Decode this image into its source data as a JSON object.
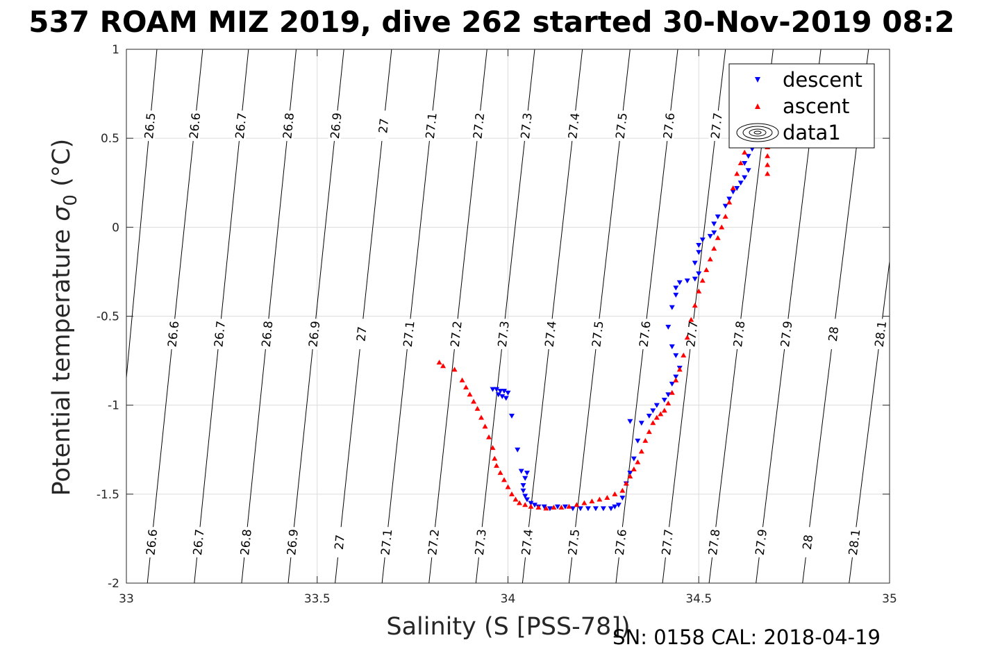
{
  "title": "537 ROAM MIZ 2019, dive 262 started 30-Nov-2019 08:2",
  "footer": "SN: 0158  CAL: 2018-04-19",
  "colors": {
    "descent": "#0000ff",
    "ascent": "#ff0000",
    "contour": "#000000",
    "grid": "#dcdcdc",
    "axis": "#262626"
  },
  "chart_data": {
    "type": "scatter",
    "title": "537 ROAM MIZ 2019, dive 262 started 30-Nov-2019 08:2",
    "xlabel": "Salinity (S [PSS-78])",
    "ylabel_main": "Potential temperature ",
    "ylabel_symbol": "σ",
    "ylabel_sub": "0",
    "ylabel_unit": " (°C)",
    "xlim": [
      33,
      35
    ],
    "ylim": [
      -2,
      1
    ],
    "xticks": [
      "33",
      "33.5",
      "34",
      "34.5",
      "35"
    ],
    "yticks": [
      "1",
      "0.5",
      "0",
      "-0.5",
      "-1",
      "-1.5",
      "-2"
    ],
    "grid": true,
    "legend_position": "top-right",
    "legend": [
      "descent",
      "ascent",
      "data1"
    ],
    "density_contours": {
      "levels": [
        "26.5",
        "26.6",
        "26.7",
        "26.8",
        "26.9",
        "27",
        "27.1",
        "27.2",
        "27.3",
        "27.4",
        "27.5",
        "27.6",
        "27.7",
        "27.8",
        "27.9",
        "28",
        "28.1"
      ],
      "bottom_salinity": [
        32.95,
        33.055,
        33.178,
        33.302,
        33.424,
        33.547,
        33.67,
        33.793,
        33.916,
        34.038,
        34.16,
        34.283,
        34.405,
        34.527,
        34.65,
        34.772,
        34.894
      ],
      "top_salinity": [
        33.08,
        33.2,
        33.32,
        33.445,
        33.57,
        33.695,
        33.82,
        33.945,
        34.07,
        34.195,
        34.32,
        34.445,
        34.57,
        34.695,
        34.82,
        34.945,
        35.07
      ],
      "labels_top_row": [
        "26.5",
        "26.6",
        "26.7",
        "26.8",
        "26.9",
        "27",
        "27.1",
        "27.2",
        "27.3",
        "27.4",
        "27.5",
        "27.6",
        "27.7"
      ],
      "labels_middle_row": [
        "26.6",
        "26.7",
        "26.8",
        "26.9",
        "27",
        "27.1",
        "27.2",
        "27.3",
        "27.4",
        "27.5",
        "27.6",
        "27.7",
        "27.8",
        "27.9",
        "28",
        "28.1"
      ],
      "labels_bottom_row": [
        "26.6",
        "26.7",
        "26.8",
        "26.9",
        "27",
        "27.1",
        "27.2",
        "27.3",
        "27.4",
        "27.5",
        "27.6",
        "27.7",
        "27.8",
        "27.9",
        "28",
        "28.1"
      ]
    },
    "series": [
      {
        "name": "descent",
        "marker": "triangle-down",
        "points": [
          [
            33.96,
            -0.91
          ],
          [
            33.97,
            -0.91
          ],
          [
            33.98,
            -0.92
          ],
          [
            33.99,
            -0.92
          ],
          [
            34.0,
            -0.93
          ],
          [
            33.985,
            -0.95
          ],
          [
            33.995,
            -0.96
          ],
          [
            33.975,
            -0.94
          ],
          [
            34.01,
            -1.06
          ],
          [
            34.025,
            -1.25
          ],
          [
            34.035,
            -1.37
          ],
          [
            34.045,
            -1.41
          ],
          [
            34.05,
            -1.38
          ],
          [
            34.04,
            -1.45
          ],
          [
            34.04,
            -1.48
          ],
          [
            34.045,
            -1.51
          ],
          [
            34.05,
            -1.53
          ],
          [
            34.06,
            -1.55
          ],
          [
            34.07,
            -1.56
          ],
          [
            34.08,
            -1.57
          ],
          [
            34.095,
            -1.57
          ],
          [
            34.11,
            -1.58
          ],
          [
            34.13,
            -1.57
          ],
          [
            34.15,
            -1.57
          ],
          [
            34.17,
            -1.58
          ],
          [
            34.19,
            -1.58
          ],
          [
            34.21,
            -1.58
          ],
          [
            34.23,
            -1.58
          ],
          [
            34.25,
            -1.58
          ],
          [
            34.27,
            -1.58
          ],
          [
            34.28,
            -1.57
          ],
          [
            34.29,
            -1.56
          ],
          [
            34.3,
            -1.52
          ],
          [
            34.31,
            -1.44
          ],
          [
            34.32,
            -1.38
          ],
          [
            34.33,
            -1.3
          ],
          [
            34.34,
            -1.2
          ],
          [
            34.35,
            -1.1
          ],
          [
            34.32,
            -1.09
          ],
          [
            34.37,
            -1.06
          ],
          [
            34.38,
            -1.03
          ],
          [
            34.39,
            -1.0
          ],
          [
            34.41,
            -0.97
          ],
          [
            34.42,
            -0.94
          ],
          [
            34.43,
            -0.88
          ],
          [
            34.44,
            -0.84
          ],
          [
            34.45,
            -0.79
          ],
          [
            34.44,
            -0.72
          ],
          [
            34.43,
            -0.67
          ],
          [
            34.42,
            -0.56
          ],
          [
            34.43,
            -0.45
          ],
          [
            34.44,
            -0.38
          ],
          [
            34.44,
            -0.34
          ],
          [
            34.45,
            -0.31
          ],
          [
            34.47,
            -0.3
          ],
          [
            34.49,
            -0.29
          ],
          [
            34.5,
            -0.26
          ],
          [
            34.49,
            -0.2
          ],
          [
            34.5,
            -0.14
          ],
          [
            34.5,
            -0.1
          ],
          [
            34.51,
            -0.07
          ],
          [
            34.53,
            -0.05
          ],
          [
            34.54,
            -0.03
          ],
          [
            34.54,
            0.02
          ],
          [
            34.55,
            0.06
          ],
          [
            34.57,
            0.12
          ],
          [
            34.58,
            0.16
          ],
          [
            34.59,
            0.2
          ],
          [
            34.6,
            0.22
          ],
          [
            34.61,
            0.25
          ],
          [
            34.62,
            0.28
          ],
          [
            34.63,
            0.32
          ],
          [
            34.62,
            0.36
          ],
          [
            34.63,
            0.4
          ],
          [
            34.64,
            0.44
          ],
          [
            34.65,
            0.47
          ]
        ]
      },
      {
        "name": "ascent",
        "marker": "triangle-up",
        "points": [
          [
            33.82,
            -0.76
          ],
          [
            33.83,
            -0.78
          ],
          [
            33.86,
            -0.8
          ],
          [
            33.88,
            -0.86
          ],
          [
            33.89,
            -0.9
          ],
          [
            33.9,
            -0.94
          ],
          [
            33.91,
            -0.98
          ],
          [
            33.92,
            -1.02
          ],
          [
            33.93,
            -1.07
          ],
          [
            33.94,
            -1.12
          ],
          [
            33.95,
            -1.18
          ],
          [
            33.96,
            -1.24
          ],
          [
            33.965,
            -1.3
          ],
          [
            33.97,
            -1.34
          ],
          [
            33.98,
            -1.38
          ],
          [
            33.99,
            -1.42
          ],
          [
            34.0,
            -1.46
          ],
          [
            34.01,
            -1.5
          ],
          [
            34.02,
            -1.53
          ],
          [
            34.03,
            -1.55
          ],
          [
            34.045,
            -1.56
          ],
          [
            34.06,
            -1.57
          ],
          [
            34.08,
            -1.575
          ],
          [
            34.1,
            -1.58
          ],
          [
            34.12,
            -1.575
          ],
          [
            34.14,
            -1.575
          ],
          [
            34.16,
            -1.57
          ],
          [
            34.18,
            -1.56
          ],
          [
            34.2,
            -1.55
          ],
          [
            34.22,
            -1.54
          ],
          [
            34.24,
            -1.53
          ],
          [
            34.26,
            -1.52
          ],
          [
            34.28,
            -1.5
          ],
          [
            34.3,
            -1.48
          ],
          [
            34.31,
            -1.44
          ],
          [
            34.32,
            -1.4
          ],
          [
            34.33,
            -1.36
          ],
          [
            34.34,
            -1.32
          ],
          [
            34.35,
            -1.26
          ],
          [
            34.36,
            -1.2
          ],
          [
            34.37,
            -1.15
          ],
          [
            34.38,
            -1.1
          ],
          [
            34.39,
            -1.07
          ],
          [
            34.4,
            -1.05
          ],
          [
            34.41,
            -1.03
          ],
          [
            34.42,
            -0.99
          ],
          [
            34.43,
            -0.93
          ],
          [
            34.44,
            -0.86
          ],
          [
            34.45,
            -0.8
          ],
          [
            34.46,
            -0.72
          ],
          [
            34.47,
            -0.62
          ],
          [
            34.48,
            -0.52
          ],
          [
            34.49,
            -0.44
          ],
          [
            34.5,
            -0.36
          ],
          [
            34.51,
            -0.3
          ],
          [
            34.52,
            -0.24
          ],
          [
            34.53,
            -0.18
          ],
          [
            34.54,
            -0.12
          ],
          [
            34.55,
            -0.06
          ],
          [
            34.56,
            0.0
          ],
          [
            34.57,
            0.06
          ],
          [
            34.58,
            0.14
          ],
          [
            34.59,
            0.22
          ],
          [
            34.6,
            0.3
          ],
          [
            34.61,
            0.36
          ],
          [
            34.62,
            0.42
          ],
          [
            34.63,
            0.46
          ],
          [
            34.68,
            0.3
          ],
          [
            34.68,
            0.35
          ],
          [
            34.68,
            0.4
          ],
          [
            34.68,
            0.45
          ]
        ]
      }
    ]
  }
}
